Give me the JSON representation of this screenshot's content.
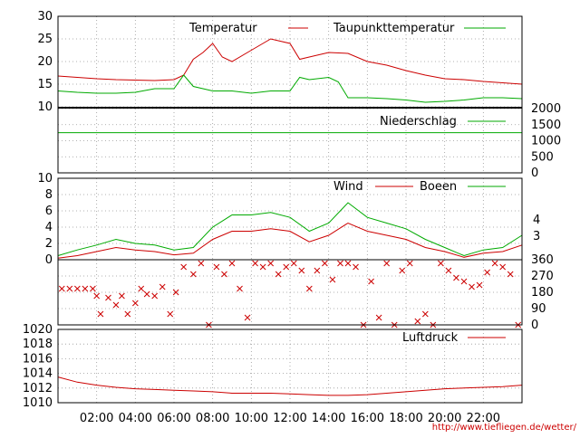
{
  "page": {
    "url": "http://www.tiefliegen.de/wetter/"
  },
  "x_ticks": [
    "02:00",
    "04:00",
    "06:00",
    "08:00",
    "10:00",
    "12:00",
    "14:00",
    "16:00",
    "18:00",
    "20:00",
    "22:00"
  ],
  "colors": {
    "red": "#cc0000",
    "green": "#00aa00",
    "grid": "#999999"
  },
  "chart_data": [
    {
      "type": "line",
      "panel": "temperature",
      "x_unit": "hours",
      "ylim": [
        10,
        30
      ],
      "yticks": [
        10,
        15,
        20,
        25,
        30
      ],
      "grid": true,
      "legend_position": "top-right",
      "series": [
        {
          "name": "Temperatur",
          "color": "#cc0000",
          "x": [
            0,
            1,
            2,
            3,
            4,
            5,
            6,
            6.5,
            7,
            7.5,
            8,
            8.5,
            9,
            10,
            11,
            11.5,
            12,
            12.5,
            13,
            14,
            15,
            16,
            17,
            18,
            19,
            20,
            21,
            22,
            23,
            24
          ],
          "values": [
            16.8,
            16.5,
            16.2,
            16.0,
            15.9,
            15.8,
            16.0,
            17.0,
            20.5,
            22.0,
            24.0,
            21.0,
            20.0,
            22.5,
            25.0,
            24.5,
            24.0,
            20.5,
            21.0,
            22.0,
            21.8,
            20.0,
            19.2,
            18.0,
            17.0,
            16.2,
            16.0,
            15.6,
            15.3,
            15.0
          ]
        },
        {
          "name": "Taupunkttemperatur",
          "color": "#00aa00",
          "x": [
            0,
            1,
            2,
            3,
            4,
            5,
            6,
            6.5,
            7,
            8,
            9,
            10,
            11,
            12,
            12.5,
            13,
            14,
            14.5,
            15,
            16,
            17,
            18,
            19,
            20,
            21,
            22,
            23,
            24
          ],
          "values": [
            13.5,
            13.2,
            13.0,
            13.0,
            13.2,
            14.0,
            14.0,
            17.0,
            14.5,
            13.5,
            13.5,
            13.0,
            13.5,
            13.5,
            16.5,
            16.0,
            16.5,
            15.5,
            12.0,
            12.0,
            11.8,
            11.5,
            11.0,
            11.2,
            11.5,
            12.0,
            12.0,
            11.8
          ]
        }
      ]
    },
    {
      "type": "line",
      "panel": "precipitation",
      "ylim": [
        0,
        2000
      ],
      "yticks": [
        0,
        500,
        1000,
        1500,
        2000
      ],
      "grid": true,
      "legend_position": "top-right",
      "series": [
        {
          "name": "Niederschlag",
          "color": "#00aa00",
          "x": [
            0,
            24
          ],
          "values": [
            1250,
            1250
          ]
        }
      ]
    },
    {
      "type": "line",
      "panel": "wind",
      "ylim": [
        0,
        10
      ],
      "yticks": [
        0,
        2,
        4,
        6,
        8,
        10
      ],
      "right_labels": [
        "3",
        "4"
      ],
      "grid": true,
      "legend_position": "top-right",
      "series": [
        {
          "name": "Wind",
          "color": "#cc0000",
          "x": [
            0,
            1,
            2,
            3,
            4,
            5,
            6,
            7,
            8,
            9,
            10,
            11,
            12,
            13,
            14,
            15,
            16,
            17,
            18,
            19,
            20,
            21,
            22,
            23,
            24
          ],
          "values": [
            0.2,
            0.5,
            1.0,
            1.5,
            1.2,
            1.0,
            0.6,
            0.8,
            2.5,
            3.5,
            3.5,
            3.8,
            3.5,
            2.2,
            3.0,
            4.5,
            3.5,
            3.0,
            2.5,
            1.5,
            1.0,
            0.3,
            0.8,
            1.0,
            1.8
          ]
        },
        {
          "name": "Boeen",
          "color": "#00aa00",
          "x": [
            0,
            1,
            2,
            3,
            4,
            5,
            6,
            7,
            8,
            9,
            10,
            11,
            12,
            13,
            14,
            15,
            16,
            17,
            18,
            19,
            20,
            21,
            22,
            23,
            24
          ],
          "values": [
            0.5,
            1.2,
            1.8,
            2.5,
            2.0,
            1.8,
            1.2,
            1.5,
            4.0,
            5.5,
            5.5,
            5.8,
            5.2,
            3.5,
            4.5,
            7.0,
            5.2,
            4.5,
            3.8,
            2.5,
            1.5,
            0.5,
            1.2,
            1.5,
            3.0
          ]
        }
      ]
    },
    {
      "type": "scatter",
      "panel": "wind_direction",
      "ylim": [
        0,
        360
      ],
      "yticks": [
        0,
        90,
        180,
        270,
        360
      ],
      "grid": true,
      "series": [
        {
          "color": "#cc0000",
          "marker": "x",
          "x": [
            0.2,
            0.6,
            1.0,
            1.4,
            1.8,
            2.0,
            2.2,
            2.6,
            3.0,
            3.3,
            3.6,
            4.0,
            4.3,
            4.6,
            5.0,
            5.4,
            5.8,
            6.1,
            6.5,
            7.0,
            7.4,
            7.8,
            8.2,
            8.6,
            9.0,
            9.4,
            9.8,
            10.2,
            10.6,
            11.0,
            11.4,
            11.8,
            12.2,
            12.6,
            13.0,
            13.4,
            13.8,
            14.2,
            14.6,
            15.0,
            15.4,
            15.8,
            16.2,
            16.6,
            17.0,
            17.4,
            17.8,
            18.2,
            18.6,
            19.0,
            19.4,
            19.8,
            20.2,
            20.6,
            21.0,
            21.4,
            21.8,
            22.2,
            22.6,
            23.0,
            23.4,
            23.8
          ],
          "values": [
            200,
            200,
            200,
            200,
            200,
            160,
            60,
            150,
            110,
            160,
            60,
            120,
            200,
            170,
            160,
            210,
            60,
            180,
            320,
            280,
            340,
            0,
            320,
            280,
            340,
            200,
            40,
            340,
            320,
            340,
            280,
            320,
            340,
            300,
            200,
            300,
            340,
            250,
            340,
            340,
            320,
            0,
            240,
            40,
            340,
            0,
            300,
            340,
            20,
            60,
            0,
            340,
            300,
            260,
            240,
            210,
            220,
            290,
            340,
            320,
            280,
            0
          ]
        }
      ]
    },
    {
      "type": "line",
      "panel": "pressure",
      "ylim": [
        1010,
        1020
      ],
      "yticks": [
        1010,
        1012,
        1014,
        1016,
        1018,
        1020
      ],
      "grid": true,
      "legend_position": "top-right",
      "series": [
        {
          "name": "Luftdruck",
          "color": "#cc0000",
          "x": [
            0,
            1,
            2,
            3,
            4,
            5,
            6,
            7,
            8,
            9,
            10,
            11,
            12,
            13,
            14,
            15,
            16,
            17,
            18,
            19,
            20,
            21,
            22,
            23,
            24
          ],
          "values": [
            1013.5,
            1012.8,
            1012.4,
            1012.1,
            1011.9,
            1011.8,
            1011.7,
            1011.6,
            1011.5,
            1011.3,
            1011.3,
            1011.3,
            1011.2,
            1011.1,
            1011.0,
            1011.0,
            1011.1,
            1011.3,
            1011.5,
            1011.7,
            1011.9,
            1012.0,
            1012.1,
            1012.2,
            1012.4
          ]
        }
      ]
    }
  ]
}
